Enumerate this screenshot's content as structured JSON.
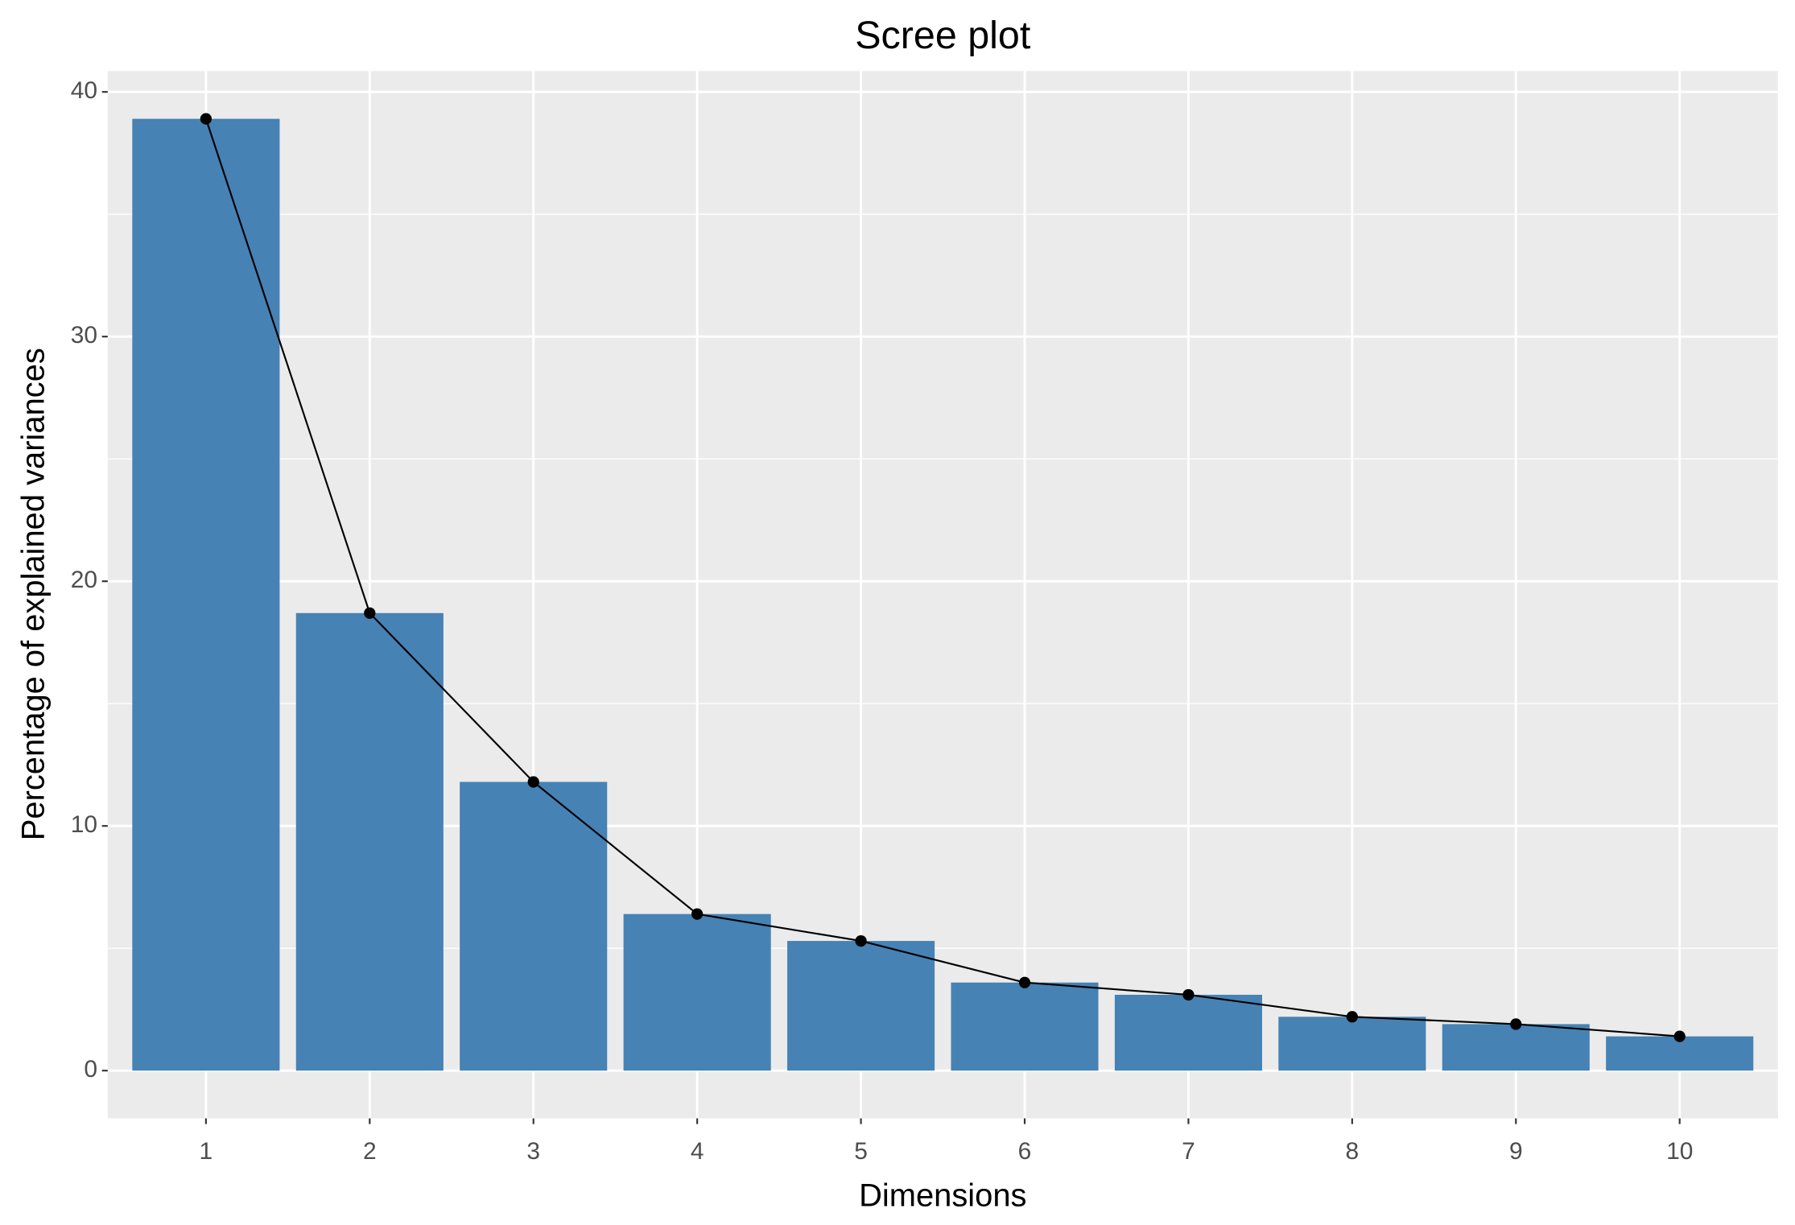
{
  "chart_data": {
    "type": "bar",
    "title": "Scree plot",
    "x_label": "Dimensions",
    "y_label": "Percentage of explained variances",
    "categories": [
      "1",
      "2",
      "3",
      "4",
      "5",
      "6",
      "7",
      "8",
      "9",
      "10"
    ],
    "values": [
      38.9,
      18.7,
      11.8,
      6.4,
      5.3,
      3.6,
      3.1,
      2.2,
      1.9,
      1.4
    ],
    "color": "#4682b4",
    "line_color": "#000000",
    "ylim": [
      -1.95,
      40.85
    ],
    "yticks": [
      0,
      10,
      20,
      30,
      40
    ],
    "grid": true
  }
}
